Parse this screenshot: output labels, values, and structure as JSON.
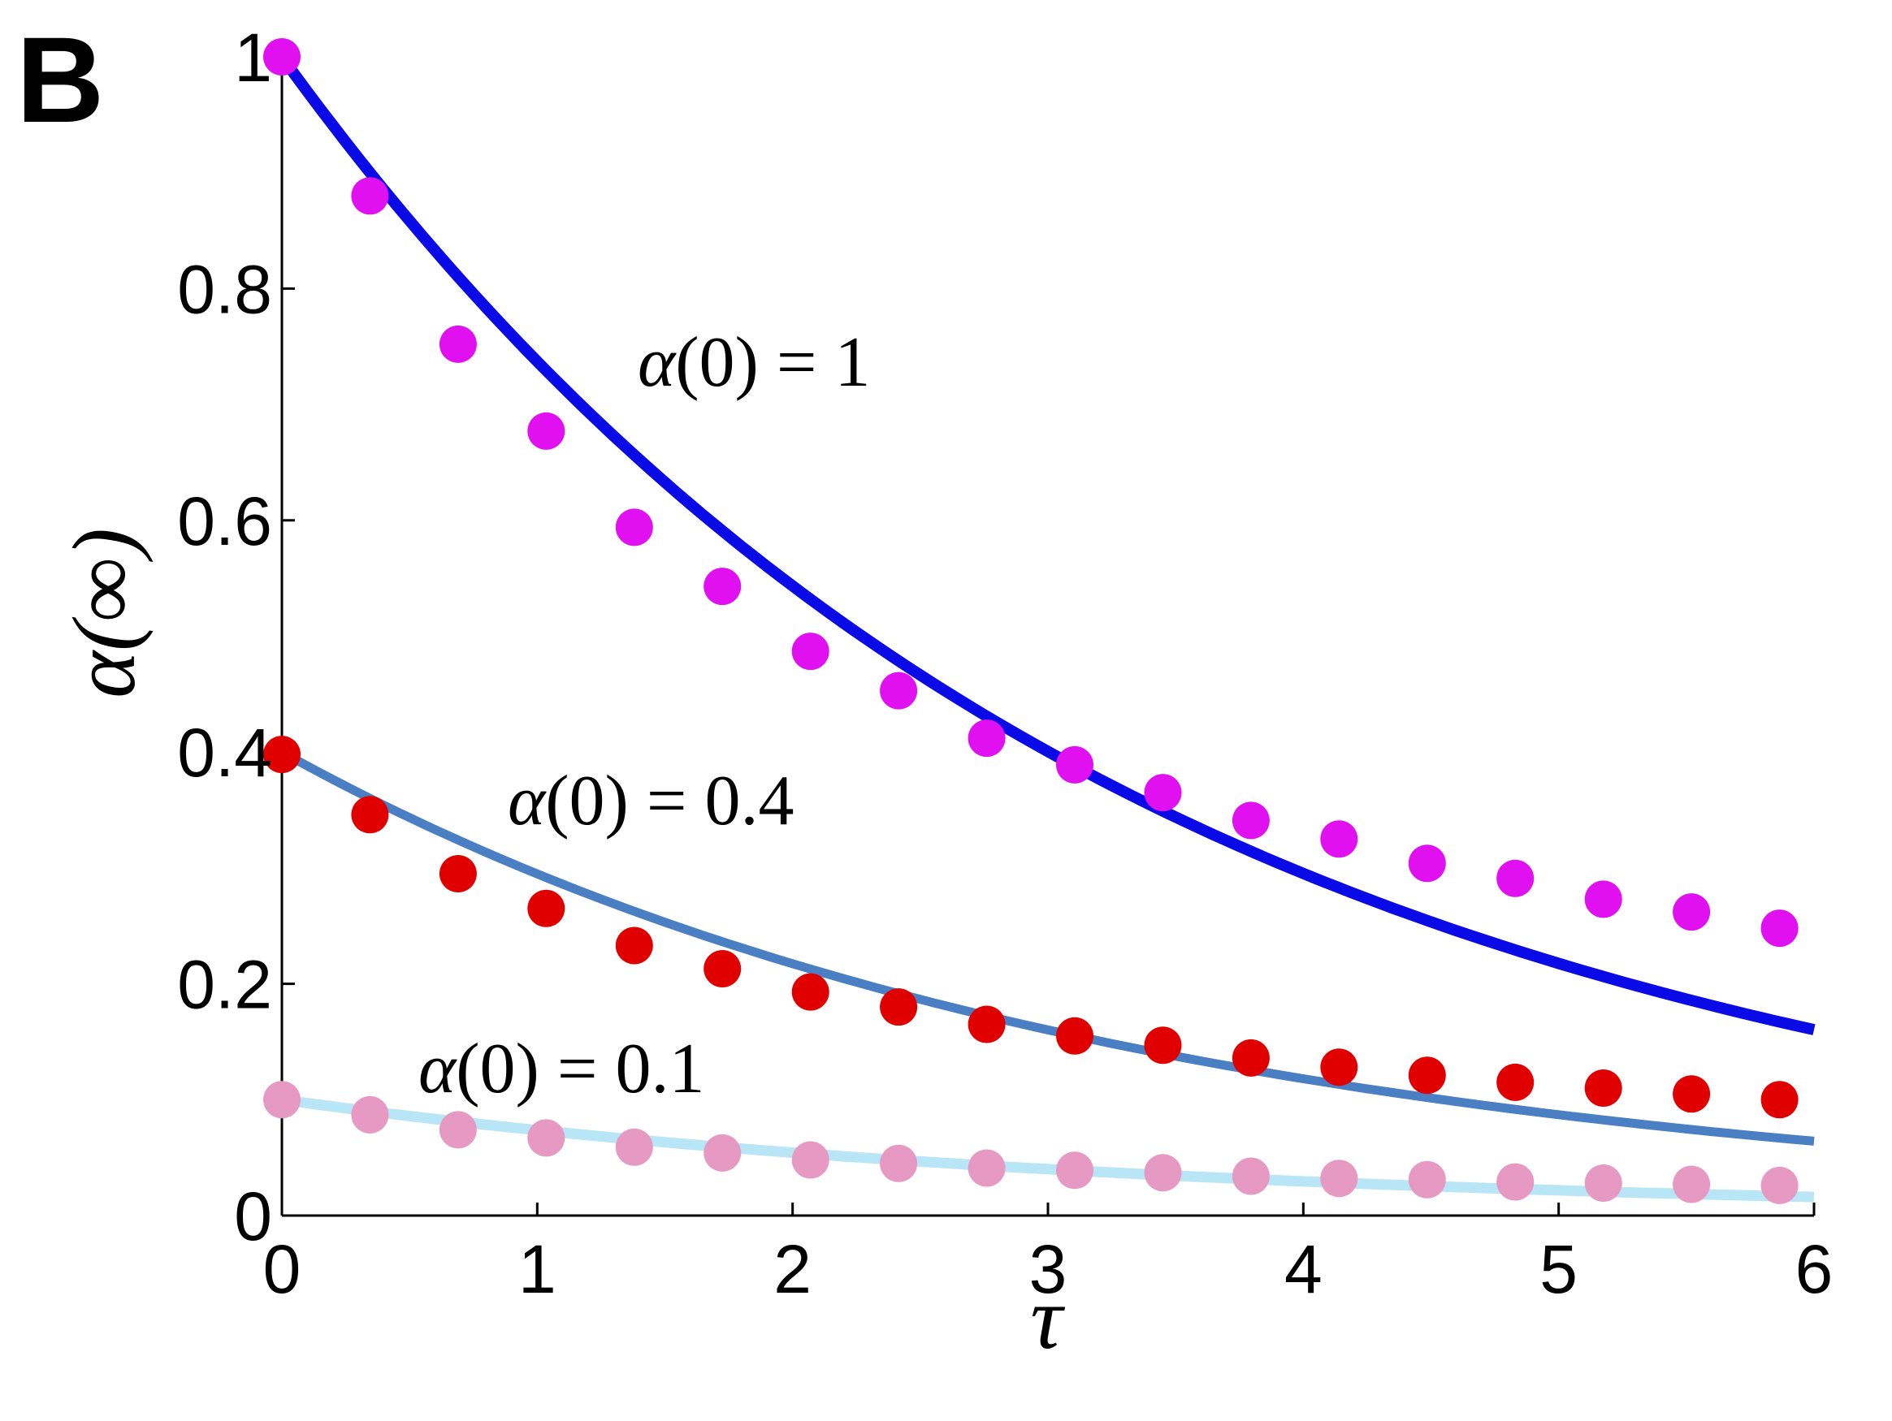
{
  "panel_label": "B",
  "chart_data": {
    "type": "scatter",
    "title": "",
    "xlabel": "τ",
    "ylabel": "α(∞)",
    "xlim": [
      0,
      6
    ],
    "ylim": [
      0,
      1
    ],
    "x_ticks": [
      "0",
      "1",
      "2",
      "3",
      "4",
      "5",
      "6"
    ],
    "y_ticks": [
      "0",
      "0.2",
      "0.4",
      "0.6",
      "0.8",
      "1"
    ],
    "grid": false,
    "legend": "none",
    "annotations": [
      {
        "prefix": "α",
        "text": "(0) = 1"
      },
      {
        "prefix": "α",
        "text": "(0) = 0.4"
      },
      {
        "prefix": "α",
        "text": "(0) = 0.1"
      }
    ],
    "x": [
      0,
      0.345,
      0.69,
      1.035,
      1.38,
      1.725,
      2.07,
      2.415,
      2.76,
      3.105,
      3.45,
      3.795,
      4.14,
      4.485,
      4.83,
      5.175,
      5.52,
      5.865
    ],
    "series": [
      {
        "kind": "points",
        "color": "#e010f0",
        "values": [
          1.0,
          0.88,
          0.752,
          0.677,
          0.594,
          0.543,
          0.487,
          0.453,
          0.412,
          0.389,
          0.365,
          0.341,
          0.325,
          0.304,
          0.291,
          0.273,
          0.262,
          0.248
        ]
      },
      {
        "kind": "points",
        "color": "#e00000",
        "values": [
          0.398,
          0.346,
          0.295,
          0.265,
          0.233,
          0.213,
          0.193,
          0.18,
          0.165,
          0.155,
          0.147,
          0.136,
          0.128,
          0.121,
          0.115,
          0.11,
          0.105,
          0.1
        ]
      },
      {
        "kind": "points",
        "color": "#e699c2",
        "values": [
          0.1,
          0.087,
          0.074,
          0.067,
          0.059,
          0.054,
          0.048,
          0.045,
          0.041,
          0.039,
          0.037,
          0.034,
          0.032,
          0.031,
          0.029,
          0.028,
          0.027,
          0.026
        ]
      },
      {
        "kind": "line",
        "color": "#0a0ae6",
        "start": 1.0,
        "decay_rate": 0.305
      },
      {
        "kind": "line",
        "color": "#4a7fc4",
        "start": 0.4,
        "decay_rate": 0.305
      },
      {
        "kind": "line",
        "color": "#b9e6f7",
        "start": 0.1,
        "decay_rate": 0.305
      }
    ]
  }
}
